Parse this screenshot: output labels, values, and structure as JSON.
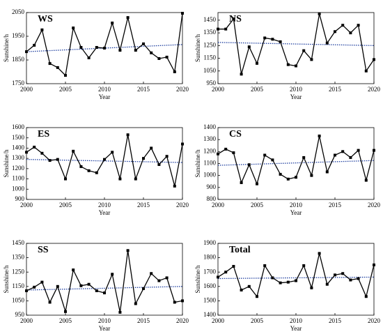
{
  "chart_data": [
    {
      "type": "line",
      "title": "WS",
      "x_label": "Year",
      "y_label": "Sunshine/h",
      "x": [
        2000,
        2001,
        2002,
        2003,
        2004,
        2005,
        2006,
        2007,
        2008,
        2009,
        2010,
        2011,
        2012,
        2013,
        2014,
        2015,
        2016,
        2017,
        2018,
        2019,
        2020
      ],
      "values": [
        1885,
        1912,
        1977,
        1835,
        1818,
        1785,
        1985,
        1903,
        1859,
        1903,
        1900,
        2006,
        1891,
        2029,
        1891,
        1918,
        1880,
        1856,
        1862,
        1800,
        2047
      ],
      "trend_x": [
        2000,
        2020
      ],
      "trend_values": [
        1885,
        1915
      ],
      "color": "#000000",
      "trend_color": "#1f3f9f",
      "xlim": [
        2000,
        2020
      ],
      "xticks": [
        2000,
        2005,
        2010,
        2015,
        2020
      ],
      "ylim": [
        1750,
        2050
      ],
      "yticks": [
        1750,
        1850,
        1950,
        2050
      ]
    },
    {
      "type": "line",
      "title": "NS",
      "x_label": "Year",
      "y_label": "Sunshine/h",
      "x": [
        2000,
        2001,
        2002,
        2003,
        2004,
        2005,
        2006,
        2007,
        2008,
        2009,
        2010,
        2011,
        2012,
        2013,
        2014,
        2015,
        2016,
        2017,
        2018,
        2019,
        2020
      ],
      "values": [
        1380,
        1380,
        1460,
        1025,
        1240,
        1110,
        1310,
        1300,
        1280,
        1100,
        1090,
        1210,
        1140,
        1500,
        1270,
        1360,
        1410,
        1350,
        1410,
        1050,
        1140
      ],
      "trend_x": [
        2000,
        2020
      ],
      "trend_values": [
        1275,
        1250
      ],
      "color": "#000000",
      "trend_color": "#1f3f9f",
      "xlim": [
        2000,
        2020
      ],
      "xticks": [
        2000,
        2005,
        2010,
        2015,
        2020
      ],
      "ylim": [
        950,
        1510
      ],
      "yticks": [
        950,
        1050,
        1150,
        1250,
        1350,
        1450
      ]
    },
    {
      "type": "line",
      "title": "ES",
      "x_label": "Year",
      "y_label": "Sunshine/h",
      "x": [
        2000,
        2001,
        2002,
        2003,
        2004,
        2005,
        2006,
        2007,
        2008,
        2009,
        2010,
        2011,
        2012,
        2013,
        2014,
        2015,
        2016,
        2017,
        2018,
        2019,
        2020
      ],
      "values": [
        1360,
        1410,
        1350,
        1280,
        1290,
        1100,
        1370,
        1220,
        1180,
        1160,
        1290,
        1360,
        1100,
        1530,
        1100,
        1300,
        1400,
        1240,
        1320,
        1030,
        1440
      ],
      "trend_x": [
        2000,
        2020
      ],
      "trend_values": [
        1290,
        1260
      ],
      "color": "#000000",
      "trend_color": "#1f3f9f",
      "xlim": [
        2000,
        2020
      ],
      "xticks": [
        2000,
        2005,
        2010,
        2015,
        2020
      ],
      "ylim": [
        900,
        1600
      ],
      "yticks": [
        900,
        1000,
        1100,
        1200,
        1300,
        1400,
        1500,
        1600
      ]
    },
    {
      "type": "line",
      "title": "CS",
      "x_label": "Year",
      "y_label": "Sunshine/h",
      "x": [
        2000,
        2001,
        2002,
        2003,
        2004,
        2005,
        2006,
        2007,
        2008,
        2009,
        2010,
        2011,
        2012,
        2013,
        2014,
        2015,
        2016,
        2017,
        2018,
        2019,
        2020
      ],
      "values": [
        1180,
        1220,
        1190,
        940,
        1090,
        930,
        1170,
        1130,
        1010,
        970,
        985,
        1150,
        1000,
        1330,
        1030,
        1170,
        1200,
        1150,
        1210,
        960,
        1210
      ],
      "trend_x": [
        2000,
        2020
      ],
      "trend_values": [
        1085,
        1125
      ],
      "color": "#000000",
      "trend_color": "#1f3f9f",
      "xlim": [
        2000,
        2020
      ],
      "xticks": [
        2000,
        2005,
        2010,
        2015,
        2020
      ],
      "ylim": [
        800,
        1400
      ],
      "yticks": [
        800,
        900,
        1000,
        1100,
        1200,
        1300,
        1400
      ]
    },
    {
      "type": "line",
      "title": "SS",
      "x_label": "Year",
      "y_label": "Sunshine/h",
      "x": [
        2000,
        2001,
        2002,
        2003,
        2004,
        2005,
        2006,
        2007,
        2008,
        2009,
        2010,
        2011,
        2012,
        2013,
        2014,
        2015,
        2016,
        2017,
        2018,
        2019,
        2020
      ],
      "values": [
        1120,
        1145,
        1180,
        1040,
        1150,
        975,
        1265,
        1155,
        1165,
        1120,
        1105,
        1235,
        970,
        1400,
        1030,
        1135,
        1240,
        1190,
        1210,
        1040,
        1050
      ],
      "trend_x": [
        2000,
        2020
      ],
      "trend_values": [
        1125,
        1150
      ],
      "color": "#000000",
      "trend_color": "#1f3f9f",
      "xlim": [
        2000,
        2020
      ],
      "xticks": [
        2000,
        2005,
        2010,
        2015,
        2020
      ],
      "ylim": [
        950,
        1450
      ],
      "yticks": [
        950,
        1050,
        1150,
        1250,
        1350,
        1450
      ]
    },
    {
      "type": "line",
      "title": "Total",
      "x_label": "Year",
      "y_label": "Sunshine/h",
      "x": [
        2000,
        2001,
        2002,
        2003,
        2004,
        2005,
        2006,
        2007,
        2008,
        2009,
        2010,
        2011,
        2012,
        2013,
        2014,
        2015,
        2016,
        2017,
        2018,
        2019,
        2020
      ],
      "values": [
        1665,
        1700,
        1740,
        1575,
        1600,
        1530,
        1745,
        1660,
        1625,
        1630,
        1640,
        1745,
        1590,
        1830,
        1615,
        1680,
        1690,
        1645,
        1655,
        1530,
        1750
      ],
      "trend_x": [
        2000,
        2020
      ],
      "trend_values": [
        1655,
        1665
      ],
      "color": "#000000",
      "trend_color": "#1f3f9f",
      "xlim": [
        2000,
        2020
      ],
      "xticks": [
        2000,
        2005,
        2010,
        2015,
        2020
      ],
      "ylim": [
        1400,
        1900
      ],
      "yticks": [
        1400,
        1500,
        1600,
        1700,
        1800,
        1900
      ]
    }
  ]
}
